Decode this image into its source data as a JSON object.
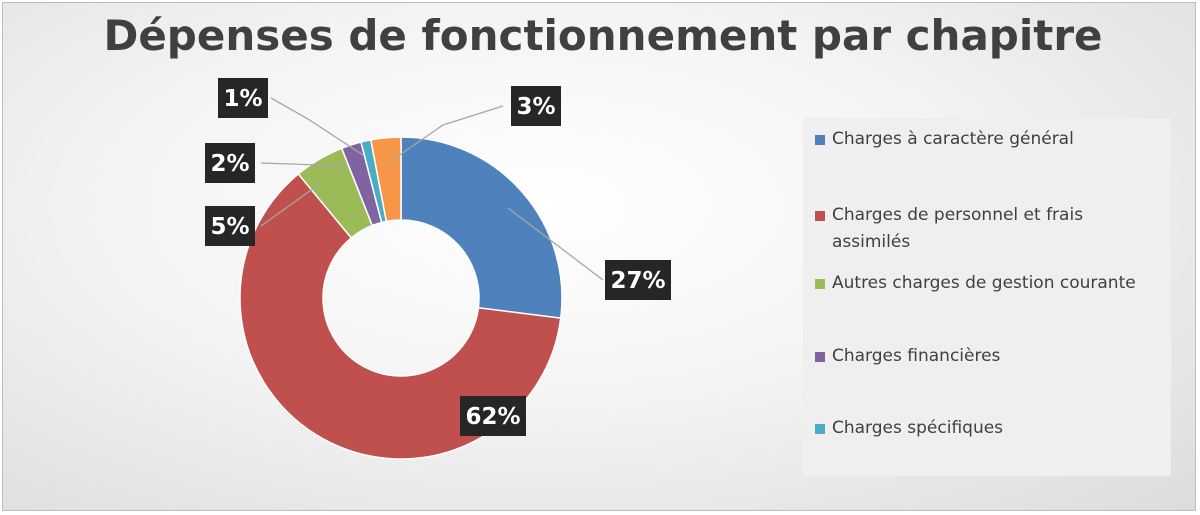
{
  "chart_data": {
    "type": "pie",
    "donut": true,
    "title": "Dépenses de fonctionnement par chapitre",
    "categories": [
      "Charges à caractère général",
      "Charges de personnel et frais assimilés",
      "Autres charges de gestion courante",
      "Charges financières",
      "Charges spécifiques",
      ""
    ],
    "values": [
      27,
      62,
      5,
      2,
      1,
      3
    ],
    "data_labels": [
      "27%",
      "62%",
      "5%",
      "2%",
      "1%",
      "3%"
    ],
    "colors": [
      "#4f81bd",
      "#c0504d",
      "#9bbb59",
      "#8064a2",
      "#4bacc6",
      "#f79646"
    ],
    "legend_position": "right",
    "legend": [
      "Charges à caractère général",
      "Charges de personnel et frais assimilés",
      "Autres charges de gestion courante",
      "Charges financières",
      "Charges spécifiques"
    ]
  }
}
